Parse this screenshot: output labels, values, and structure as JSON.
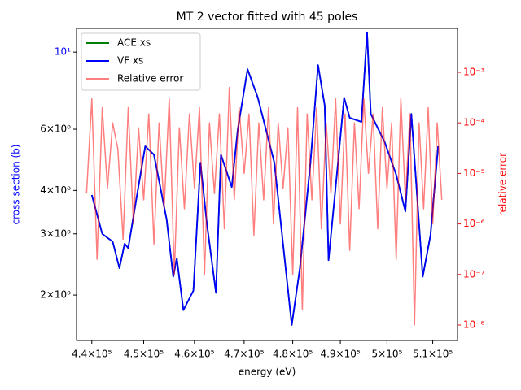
{
  "chart_data": {
    "type": "line",
    "title": "MT 2 vector fitted with 45 poles",
    "xlabel": "energy (eV)",
    "ylabel": "cross section (b)",
    "y2label": "relative error",
    "xscale": "log",
    "yscale": "log",
    "y2scale": "log",
    "xlim": [
      437100,
      515500
    ],
    "ylim": [
      1.48,
      11.7
    ],
    "y2lim": [
      4.95e-09,
      0.00738
    ],
    "xticks": [
      {
        "value": 440000,
        "label": "4.4×10⁵"
      },
      {
        "value": 450000,
        "label": "4.5×10⁵"
      },
      {
        "value": 460000,
        "label": "4.6×10⁵"
      },
      {
        "value": 470000,
        "label": "4.7×10⁵"
      },
      {
        "value": 480000,
        "label": "4.8×10⁵"
      },
      {
        "value": 490000,
        "label": "4.9×10⁵"
      },
      {
        "value": 500000,
        "label": "5×10⁵"
      },
      {
        "value": 510000,
        "label": "5.1×10⁵"
      }
    ],
    "yticks": [
      {
        "value": 2,
        "label": "2×10⁰"
      },
      {
        "value": 3,
        "label": "3×10⁰"
      },
      {
        "value": 4,
        "label": "4×10⁰"
      },
      {
        "value": 6,
        "label": "6×10⁰"
      },
      {
        "value": 10,
        "label": "10¹"
      }
    ],
    "y2ticks": [
      {
        "value": 1e-08,
        "label": "10⁻⁸"
      },
      {
        "value": 1e-07,
        "label": "10⁻⁷"
      },
      {
        "value": 1e-06,
        "label": "10⁻⁶"
      },
      {
        "value": 1e-05,
        "label": "10⁻⁵"
      },
      {
        "value": 0.0001,
        "label": "10⁻⁴"
      },
      {
        "value": 0.001,
        "label": "10⁻³"
      }
    ],
    "legend": "upper left",
    "series": [
      {
        "name": "ACE xs",
        "color": "#008000",
        "alpha": 1,
        "x": [
          440000,
          442000,
          444000,
          445300,
          446300,
          447000,
          448700,
          450300,
          452000,
          454500,
          455800,
          456500,
          457800,
          459800,
          461200,
          462500,
          464300,
          465300,
          467500,
          468700,
          470700,
          472800,
          476200,
          479800,
          481500,
          483700,
          485300,
          486700,
          487500,
          489500,
          490800,
          492000,
          494500,
          495700,
          496500,
          499500,
          502000,
          504000,
          505300,
          507800,
          509500,
          511200
        ],
        "values": [
          3.88,
          3.0,
          2.85,
          2.39,
          2.81,
          2.73,
          3.88,
          5.36,
          5.07,
          3.3,
          2.26,
          2.55,
          1.81,
          2.06,
          4.81,
          3.2,
          2.03,
          5.07,
          4.09,
          5.97,
          8.93,
          7.4,
          4.81,
          1.64,
          2.39,
          4.81,
          9.18,
          7.02,
          2.52,
          4.81,
          7.4,
          6.47,
          6.3,
          11.4,
          6.64,
          5.51,
          4.44,
          3.48,
          6.64,
          2.26,
          2.97,
          5.36
        ]
      },
      {
        "name": "VF xs",
        "color": "#0000ff",
        "alpha": 1,
        "x": [
          440000,
          442000,
          444000,
          445300,
          446300,
          447000,
          448700,
          450300,
          452000,
          454500,
          455800,
          456500,
          457800,
          459800,
          461200,
          462500,
          464300,
          465300,
          467500,
          468700,
          470700,
          472800,
          476200,
          479800,
          481500,
          483700,
          485300,
          486700,
          487500,
          489500,
          490800,
          492000,
          494500,
          495700,
          496500,
          499500,
          502000,
          504000,
          505300,
          507800,
          509500,
          511200
        ],
        "values": [
          3.88,
          3.0,
          2.85,
          2.39,
          2.81,
          2.73,
          3.88,
          5.36,
          5.07,
          3.3,
          2.26,
          2.55,
          1.81,
          2.06,
          4.81,
          3.2,
          2.03,
          5.07,
          4.09,
          5.97,
          8.93,
          7.4,
          4.81,
          1.64,
          2.39,
          4.81,
          9.18,
          7.02,
          2.52,
          4.81,
          7.4,
          6.47,
          6.3,
          11.4,
          6.64,
          5.51,
          4.44,
          3.48,
          6.64,
          2.26,
          2.97,
          5.36
        ]
      },
      {
        "name": "Relative error",
        "color": "#ff0000",
        "alpha": 0.5,
        "axis": "y2",
        "x": [
          439000,
          440000,
          441000,
          442000,
          443000,
          444000,
          445000,
          446000,
          447000,
          448000,
          449000,
          450000,
          451000,
          452000,
          453000,
          454000,
          455000,
          456000,
          457000,
          458000,
          459000,
          460000,
          461000,
          462000,
          463000,
          464000,
          465000,
          466000,
          467000,
          468000,
          469000,
          470000,
          471000,
          472000,
          473000,
          474000,
          475000,
          476000,
          477000,
          478000,
          479000,
          480000,
          481000,
          482000,
          483000,
          484000,
          485000,
          486000,
          487000,
          488000,
          489000,
          490000,
          491000,
          492000,
          493000,
          494000,
          495000,
          496000,
          497000,
          498000,
          499000,
          500000,
          501000,
          502000,
          503000,
          504000,
          505000,
          506000,
          507000,
          508000,
          509000,
          510000,
          511000,
          512000
        ],
        "values": [
          4e-06,
          0.0003,
          2e-07,
          0.0002,
          5e-06,
          0.0001,
          3e-05,
          5e-07,
          0.0002,
          1e-06,
          8e-05,
          3e-06,
          0.00015,
          4e-07,
          0.0001,
          2e-06,
          0.0003,
          1e-07,
          8e-05,
          2e-06,
          0.00015,
          5e-06,
          0.0002,
          1e-07,
          0.0001,
          4e-06,
          0.00015,
          8e-07,
          0.0005,
          3e-06,
          0.0002,
          1e-05,
          0.00015,
          6e-07,
          0.0001,
          3e-06,
          0.0002,
          1e-06,
          0.0001,
          5e-06,
          8e-05,
          1e-07,
          0.0002,
          2e-08,
          0.00015,
          3e-06,
          0.0002,
          8e-07,
          0.0001,
          4e-06,
          0.0003,
          1e-06,
          0.00015,
          3e-07,
          0.0001,
          2e-06,
          0.0003,
          1e-05,
          0.00015,
          8e-07,
          0.0002,
          5e-06,
          0.0001,
          2e-07,
          0.0003,
          3e-06,
          0.00015,
          1e-08,
          0.0001,
          2e-06,
          0.0002,
          1e-06,
          0.0001,
          3e-06
        ]
      }
    ]
  }
}
